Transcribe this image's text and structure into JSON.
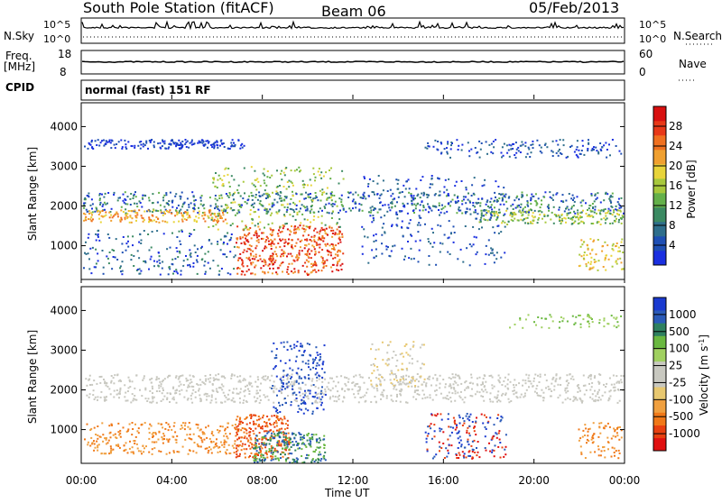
{
  "header": {
    "station": "South Pole Station (fitACF)",
    "beam": "Beam 06",
    "date": "05/Feb/2013"
  },
  "left_labels": {
    "nsky": "N.Sky",
    "freq": "Freq.",
    "freq_unit": "[MHz]",
    "cpid": "CPID"
  },
  "right_labels": {
    "nsearch": "N.Search",
    "nave": "Nave"
  },
  "cpid_text": "normal (fast) 151 RF",
  "chart_data": [
    {
      "type": "line",
      "name": "noise",
      "ylabels": [
        "10^5",
        "10^0"
      ],
      "right_ylabels": [
        "10^5",
        "10^0"
      ]
    },
    {
      "type": "line",
      "name": "frequency",
      "ylabels": [
        "18",
        "8"
      ],
      "right_ylabels": [
        "60",
        "0"
      ]
    },
    {
      "type": "heatmap",
      "name": "power",
      "ylabel": "Slant Range [km]",
      "yticks": [
        "1000",
        "2000",
        "3000",
        "4000"
      ],
      "ylim": [
        150,
        4600
      ],
      "colorbar_label": "Power [dB]",
      "colorbar_ticks": [
        "4",
        "8",
        "12",
        "16",
        "20",
        "24",
        "28"
      ],
      "colors": [
        "#1a2fe0",
        "#1e4fb4",
        "#2e6e8c",
        "#3b8a62",
        "#64b04a",
        "#a8c83c",
        "#e8d43a",
        "#f0a030",
        "#f07020",
        "#e83818",
        "#d81010"
      ]
    },
    {
      "type": "heatmap",
      "name": "velocity",
      "ylabel": "Slant Range [km]",
      "yticks": [
        "1000",
        "2000",
        "3000",
        "4000"
      ],
      "ylim": [
        150,
        4600
      ],
      "colorbar_label": "Velocity [m s",
      "colorbar_sup": "-1",
      "colorbar_close": "]",
      "colorbar_ticks": [
        "1000",
        "500",
        "100",
        "25",
        "-25",
        "-100",
        "-500",
        "-1000"
      ],
      "colors": [
        "#1a3ad0",
        "#2a5ab8",
        "#2e8060",
        "#6ab840",
        "#a0d060",
        "#c8c8c0",
        "#c8c8c0",
        "#e8c870",
        "#f0a040",
        "#f07818",
        "#e84010",
        "#e01010"
      ]
    }
  ],
  "xaxis": {
    "label": "Time UT",
    "ticks": [
      "00:00",
      "04:00",
      "08:00",
      "12:00",
      "16:00",
      "20:00",
      "00:00"
    ]
  }
}
